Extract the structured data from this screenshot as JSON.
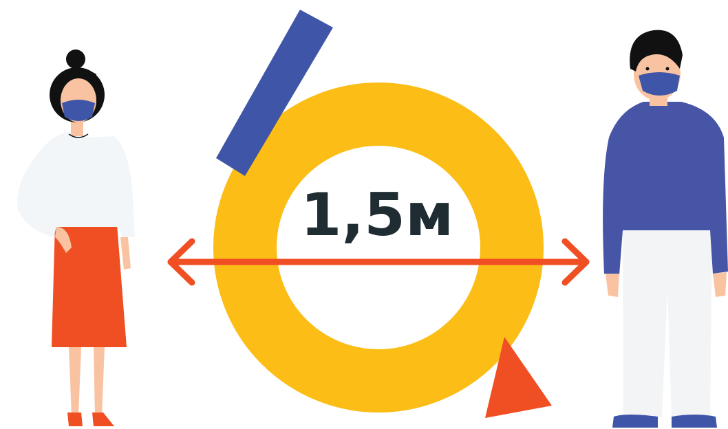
{
  "label": "1,5м"
}
